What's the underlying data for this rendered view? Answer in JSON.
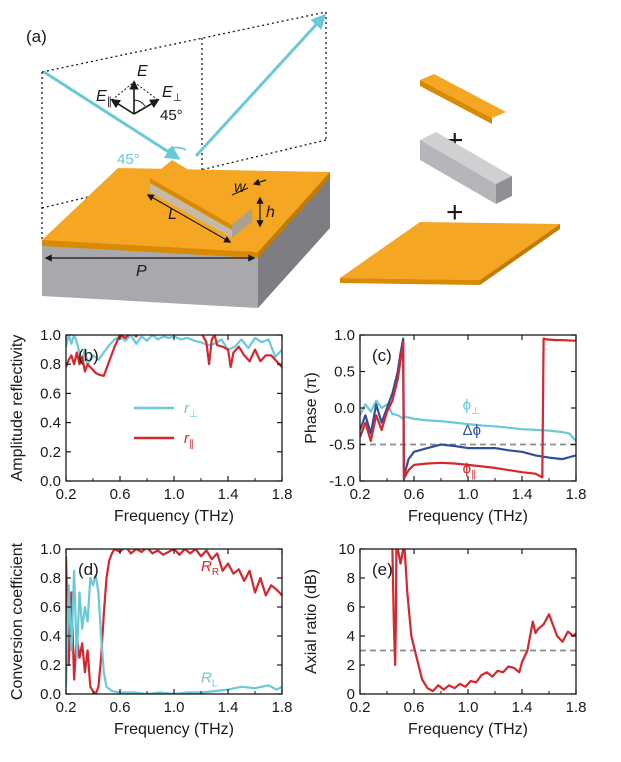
{
  "colors": {
    "cyan": "#6ac9d6",
    "red": "#d7262d",
    "blue": "#2f4f9c",
    "gold": "#f5a623",
    "gold_dark": "#d98a00",
    "gray": "#a9a9ad",
    "gray_dark": "#7d7d82",
    "dash": "#8a8a8a"
  },
  "schematic": {
    "label": "(a)",
    "E": "E",
    "E_par": "E",
    "E_par_sub": "∥",
    "E_perp": "E",
    "E_perp_sub": "⊥",
    "angle_45_a": "45°",
    "angle_45_b": "45°",
    "w": "w",
    "h": "h",
    "L": "L",
    "P": "P",
    "plus": "+"
  },
  "chart_data": [
    {
      "panel": "(b)",
      "type": "line",
      "xlabel": "Frequency (THz)",
      "ylabel": "Amplitude reflectivity",
      "xlim": [
        0.2,
        1.8
      ],
      "ylim": [
        0.0,
        1.0
      ],
      "xticks": [
        "0.2",
        "0.6",
        "1.0",
        "1.4",
        "1.8"
      ],
      "yticks": [
        "0.0",
        "0.2",
        "0.4",
        "0.6",
        "0.8",
        "1.0"
      ],
      "legend": [
        {
          "sym": "r",
          "sub": "⊥",
          "color": "cyan"
        },
        {
          "sym": "r",
          "sub": "∥",
          "color": "red"
        }
      ],
      "series": [
        {
          "name": "r_perp",
          "color": "cyan",
          "x": [
            0.2,
            0.22,
            0.24,
            0.26,
            0.28,
            0.3,
            0.32,
            0.34,
            0.36,
            0.4,
            0.44,
            0.48,
            0.52,
            0.56,
            0.6,
            0.64,
            0.68,
            0.72,
            0.76,
            0.8,
            0.84,
            0.88,
            0.92,
            0.96,
            1.0,
            1.05,
            1.1,
            1.15,
            1.2,
            1.25,
            1.3,
            1.35,
            1.4,
            1.45,
            1.5,
            1.55,
            1.6,
            1.65,
            1.7,
            1.75,
            1.8
          ],
          "y": [
            0.92,
            1.0,
            0.94,
            1.0,
            0.95,
            0.88,
            0.82,
            0.9,
            0.8,
            0.86,
            0.83,
            0.88,
            0.93,
            0.97,
            0.99,
            0.96,
            1.0,
            0.94,
            0.99,
            0.96,
            1.0,
            0.97,
            0.99,
            0.98,
            0.99,
            0.97,
            0.98,
            0.96,
            0.95,
            0.93,
            0.94,
            0.97,
            0.9,
            0.92,
            0.97,
            0.91,
            0.98,
            0.95,
            0.97,
            0.85,
            0.9
          ]
        },
        {
          "name": "r_par",
          "color": "red",
          "x": [
            0.2,
            0.22,
            0.24,
            0.26,
            0.28,
            0.3,
            0.32,
            0.34,
            0.36,
            0.38,
            0.4,
            0.42,
            0.44,
            0.48,
            0.52,
            0.56,
            0.6,
            0.64,
            0.68,
            0.72,
            0.76,
            0.8,
            0.84,
            0.88,
            0.92,
            0.96,
            1.0,
            1.04,
            1.08,
            1.12,
            1.16,
            1.2,
            1.24,
            1.26,
            1.28,
            1.3,
            1.32,
            1.36,
            1.4,
            1.42,
            1.44,
            1.48,
            1.52,
            1.56,
            1.6,
            1.64,
            1.68,
            1.72,
            1.76,
            1.8
          ],
          "y": [
            0.78,
            0.83,
            0.86,
            0.8,
            0.88,
            0.8,
            0.85,
            0.75,
            0.8,
            0.78,
            0.76,
            0.74,
            0.73,
            0.72,
            0.82,
            0.92,
            1.0,
            0.98,
            1.02,
            0.99,
            1.03,
            1.01,
            1.04,
            1.02,
            1.03,
            1.04,
            1.05,
            1.03,
            1.05,
            1.04,
            1.03,
            1.02,
            0.95,
            0.8,
            0.97,
            1.0,
            0.93,
            0.92,
            0.9,
            0.78,
            0.88,
            0.92,
            0.86,
            0.82,
            0.9,
            0.82,
            0.86,
            0.86,
            0.82,
            0.78
          ]
        }
      ]
    },
    {
      "panel": "(c)",
      "type": "line",
      "xlabel": "Frequency (THz)",
      "ylabel": "Phase (π)",
      "xlim": [
        0.2,
        1.8
      ],
      "ylim": [
        -1.0,
        1.0
      ],
      "xticks": [
        "0.2",
        "0.6",
        "1.0",
        "1.4",
        "1.8"
      ],
      "yticks": [
        "1.0",
        "0.5",
        "0.0",
        "-0.5",
        "-1.0"
      ],
      "reference_line": -0.5,
      "labels": [
        {
          "sym": "ϕ",
          "sub": "⊥",
          "color": "cyan"
        },
        {
          "sym": "Δϕ",
          "sub": "",
          "color": "blue"
        },
        {
          "sym": "ϕ",
          "sub": "∥",
          "color": "red"
        }
      ],
      "series": [
        {
          "name": "phi_perp",
          "color": "cyan",
          "x": [
            0.2,
            0.24,
            0.28,
            0.32,
            0.36,
            0.4,
            0.44,
            0.48,
            0.5,
            0.52,
            0.53,
            0.56,
            0.6,
            0.7,
            0.8,
            0.9,
            1.0,
            1.1,
            1.2,
            1.3,
            1.4,
            1.5,
            1.6,
            1.7,
            1.75,
            1.8
          ],
          "y": [
            -0.1,
            0.05,
            -0.05,
            0.1,
            0.0,
            0.05,
            -0.08,
            -0.1,
            -0.12,
            -0.15,
            -0.12,
            -0.13,
            -0.15,
            -0.17,
            -0.18,
            -0.2,
            -0.22,
            -0.24,
            -0.25,
            -0.27,
            -0.29,
            -0.3,
            -0.31,
            -0.33,
            -0.35,
            -0.45
          ]
        },
        {
          "name": "delta_phi",
          "color": "blue",
          "x": [
            0.2,
            0.24,
            0.28,
            0.32,
            0.36,
            0.4,
            0.44,
            0.48,
            0.5,
            0.52,
            0.525,
            0.53,
            0.56,
            0.6,
            0.7,
            0.8,
            0.9,
            1.0,
            1.1,
            1.2,
            1.3,
            1.4,
            1.5,
            1.6,
            1.7,
            1.8
          ],
          "y": [
            -0.3,
            -0.1,
            -0.35,
            0.05,
            -0.2,
            0.0,
            0.2,
            0.5,
            0.75,
            0.95,
            -0.98,
            -0.9,
            -0.7,
            -0.6,
            -0.55,
            -0.5,
            -0.52,
            -0.55,
            -0.55,
            -0.55,
            -0.58,
            -0.6,
            -0.65,
            -0.68,
            -0.7,
            -0.65
          ]
        },
        {
          "name": "phi_par",
          "color": "red",
          "x": [
            0.2,
            0.24,
            0.28,
            0.32,
            0.36,
            0.4,
            0.44,
            0.48,
            0.5,
            0.52,
            0.525,
            0.53,
            0.56,
            0.6,
            0.7,
            0.8,
            0.9,
            1.0,
            1.1,
            1.2,
            1.3,
            1.4,
            1.5,
            1.55,
            1.56,
            1.58,
            1.65,
            1.7,
            1.8
          ],
          "y": [
            -0.4,
            -0.2,
            -0.45,
            -0.1,
            -0.3,
            -0.05,
            0.1,
            0.4,
            0.65,
            0.9,
            -0.95,
            -0.95,
            -0.85,
            -0.78,
            -0.76,
            -0.75,
            -0.76,
            -0.78,
            -0.8,
            -0.82,
            -0.85,
            -0.88,
            -0.9,
            -0.95,
            0.95,
            0.94,
            0.93,
            0.93,
            0.92
          ]
        }
      ]
    },
    {
      "panel": "(d)",
      "type": "line",
      "xlabel": "Frequency (THz)",
      "ylabel": "Conversion coefficient",
      "xlim": [
        0.2,
        1.8
      ],
      "ylim": [
        0.0,
        1.0
      ],
      "xticks": [
        "0.2",
        "0.6",
        "1.0",
        "1.4",
        "1.8"
      ],
      "yticks": [
        "0.0",
        "0.2",
        "0.4",
        "0.6",
        "0.8",
        "1.0"
      ],
      "labels": [
        {
          "sym": "R",
          "sub": "R",
          "color": "red"
        },
        {
          "sym": "R",
          "sub": "L",
          "color": "cyan"
        }
      ],
      "series": [
        {
          "name": "R_R",
          "color": "red",
          "x": [
            0.2,
            0.22,
            0.24,
            0.26,
            0.28,
            0.3,
            0.32,
            0.34,
            0.36,
            0.38,
            0.4,
            0.42,
            0.44,
            0.46,
            0.48,
            0.5,
            0.52,
            0.54,
            0.56,
            0.6,
            0.64,
            0.68,
            0.72,
            0.76,
            0.8,
            0.84,
            0.88,
            0.92,
            0.96,
            1.0,
            1.04,
            1.08,
            1.12,
            1.16,
            1.2,
            1.24,
            1.28,
            1.32,
            1.36,
            1.4,
            1.44,
            1.48,
            1.52,
            1.56,
            1.6,
            1.64,
            1.68,
            1.72,
            1.76,
            1.8
          ],
          "y": [
            0.95,
            0.2,
            0.7,
            0.1,
            0.4,
            0.25,
            0.35,
            0.15,
            0.3,
            0.05,
            0.02,
            0.0,
            0.05,
            0.25,
            0.55,
            0.8,
            0.92,
            0.97,
            1.0,
            0.98,
            1.02,
            0.97,
            1.0,
            0.98,
            1.01,
            0.97,
            0.99,
            0.96,
            0.98,
            1.0,
            0.96,
            1.0,
            0.97,
            1.0,
            0.95,
            0.99,
            0.93,
            0.97,
            0.85,
            0.9,
            0.83,
            0.86,
            0.78,
            0.85,
            0.7,
            0.8,
            0.68,
            0.75,
            0.72,
            0.68
          ]
        },
        {
          "name": "R_L",
          "color": "cyan",
          "x": [
            0.2,
            0.22,
            0.24,
            0.26,
            0.28,
            0.3,
            0.32,
            0.34,
            0.36,
            0.38,
            0.4,
            0.42,
            0.44,
            0.46,
            0.48,
            0.5,
            0.54,
            0.6,
            0.7,
            0.8,
            0.9,
            1.0,
            1.1,
            1.2,
            1.3,
            1.4,
            1.5,
            1.6,
            1.7,
            1.76,
            1.8
          ],
          "y": [
            0.05,
            0.75,
            0.3,
            0.85,
            0.25,
            0.7,
            0.45,
            0.6,
            0.5,
            0.8,
            0.75,
            0.82,
            0.7,
            0.4,
            0.15,
            0.05,
            0.02,
            0.01,
            0.01,
            0.0,
            0.01,
            0.0,
            0.01,
            0.01,
            0.02,
            0.03,
            0.05,
            0.04,
            0.06,
            0.03,
            0.05
          ]
        }
      ]
    },
    {
      "panel": "(e)",
      "type": "line",
      "xlabel": "Frequency (THz)",
      "ylabel": "Axial ratio (dB)",
      "xlim": [
        0.2,
        1.8
      ],
      "ylim": [
        0,
        10
      ],
      "xticks": [
        "0.2",
        "0.6",
        "1.0",
        "1.4",
        "1.8"
      ],
      "yticks": [
        "0",
        "2",
        "4",
        "6",
        "8",
        "10"
      ],
      "reference_line": 3,
      "series": [
        {
          "name": "axial_ratio",
          "color": "red",
          "x": [
            0.44,
            0.45,
            0.46,
            0.465,
            0.47,
            0.48,
            0.5,
            0.52,
            0.53,
            0.55,
            0.58,
            0.62,
            0.66,
            0.7,
            0.74,
            0.78,
            0.82,
            0.86,
            0.9,
            0.94,
            0.98,
            1.02,
            1.06,
            1.1,
            1.14,
            1.18,
            1.22,
            1.26,
            1.3,
            1.34,
            1.38,
            1.4,
            1.44,
            1.48,
            1.5,
            1.52,
            1.56,
            1.6,
            1.62,
            1.66,
            1.7,
            1.74,
            1.78,
            1.8
          ],
          "y": [
            10.0,
            5.0,
            2.0,
            4.5,
            10.0,
            10.0,
            9.0,
            10.0,
            10.0,
            7.0,
            4.0,
            2.5,
            1.0,
            0.4,
            0.2,
            0.6,
            0.3,
            0.6,
            0.4,
            0.7,
            0.5,
            0.9,
            0.8,
            1.3,
            1.5,
            1.2,
            1.6,
            1.5,
            1.9,
            1.8,
            1.5,
            2.2,
            3.0,
            5.0,
            4.2,
            4.5,
            4.8,
            5.5,
            5.0,
            4.0,
            3.6,
            4.3,
            4.0,
            4.2
          ]
        }
      ]
    }
  ]
}
